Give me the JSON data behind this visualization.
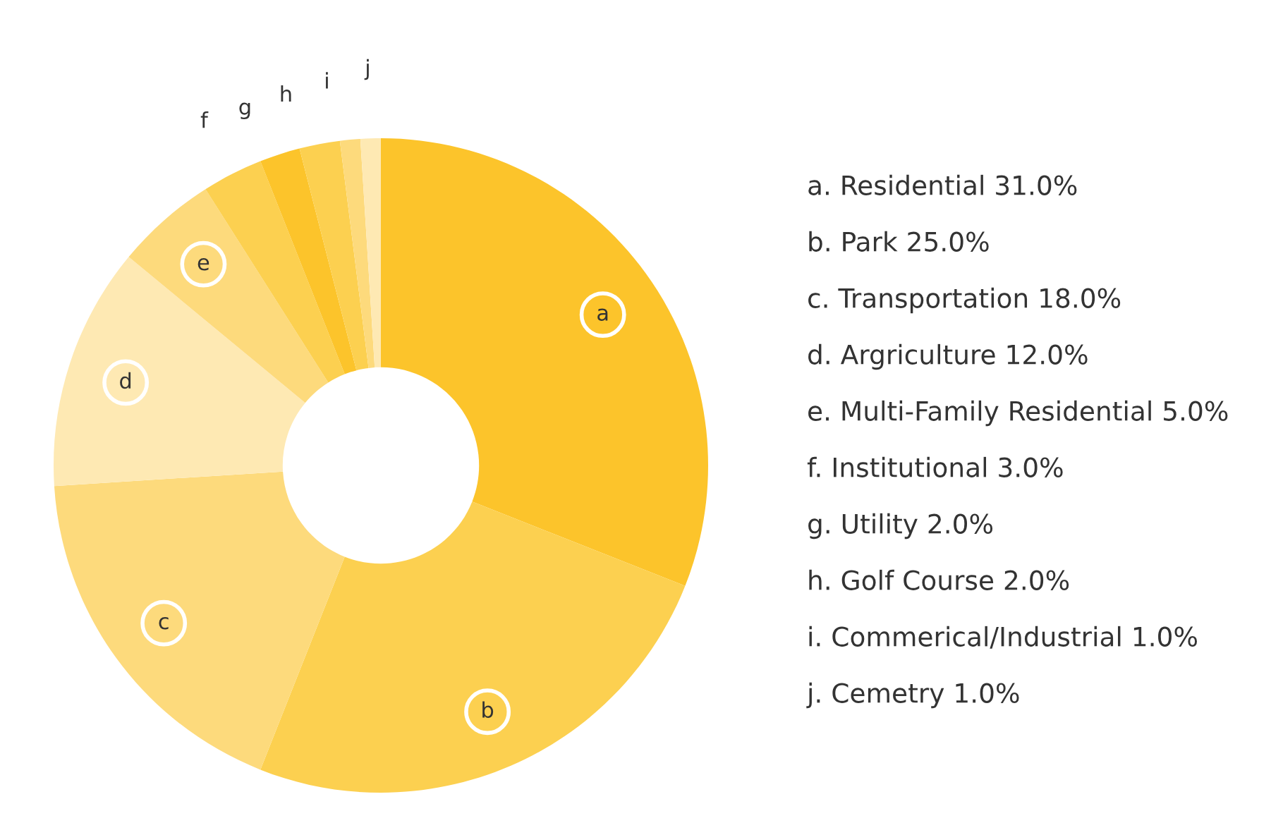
{
  "chart_data": {
    "type": "donut",
    "categories": [
      "a",
      "b",
      "c",
      "d",
      "e",
      "f",
      "g",
      "h",
      "i",
      "j"
    ],
    "values": [
      31,
      25,
      18,
      12,
      5,
      3,
      2,
      2,
      1,
      1
    ],
    "colors": [
      "#fcc42b",
      "#fcd050",
      "#fdda7c",
      "#fee9b3",
      "#fdda7c",
      "#fcd050",
      "#fcc42b",
      "#fcd050",
      "#fdda7c",
      "#fee9b3"
    ],
    "annotations": [
      "a. Residential 31.0%",
      "b. Park 25.0%",
      "c. Transportation 18.0%",
      "d. Argriculture 12.0%",
      "e. Multi-Family Residential 5.0%",
      "f. Institutional 3.0%",
      "g. Utility 2.0%",
      "h. Golf Course 2.0%",
      "i. Commerical/Industrial 1.0%",
      "j. Cemetry 1.0%"
    ]
  }
}
